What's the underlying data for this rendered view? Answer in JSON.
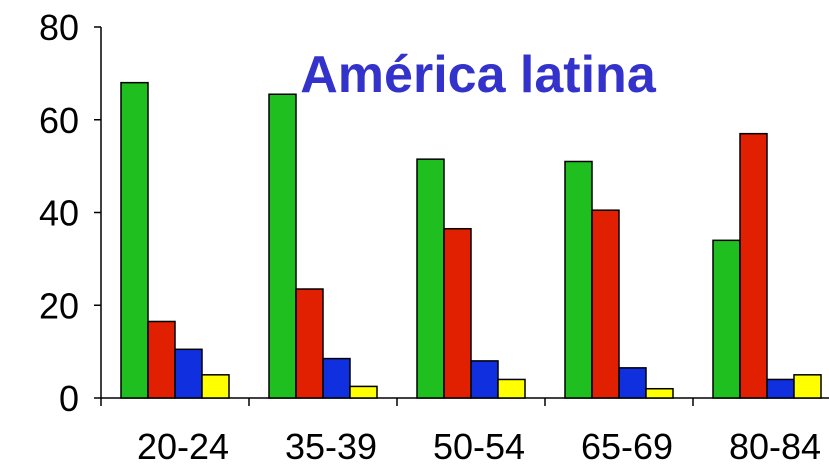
{
  "chart_data": {
    "type": "bar",
    "title": "América latina",
    "categories": [
      "20-24",
      "35-39",
      "50-54",
      "65-69",
      "80-84"
    ],
    "series": [
      {
        "values": [
          68,
          65.5,
          51.5,
          51,
          34
        ],
        "color": "#1fbf1f"
      },
      {
        "values": [
          16.5,
          23.5,
          36.5,
          40.5,
          57
        ],
        "color": "#e02000"
      },
      {
        "values": [
          10.5,
          8.5,
          8,
          6.5,
          4
        ],
        "color": "#1030e0"
      },
      {
        "values": [
          5,
          2.5,
          4,
          2,
          5
        ],
        "color": "#ffff00"
      }
    ],
    "ylim": [
      0,
      80
    ],
    "yticks": [
      0,
      20,
      40,
      60,
      80
    ],
    "xlabel": "",
    "ylabel": "",
    "grid": false,
    "title_color": "#3333cc"
  }
}
